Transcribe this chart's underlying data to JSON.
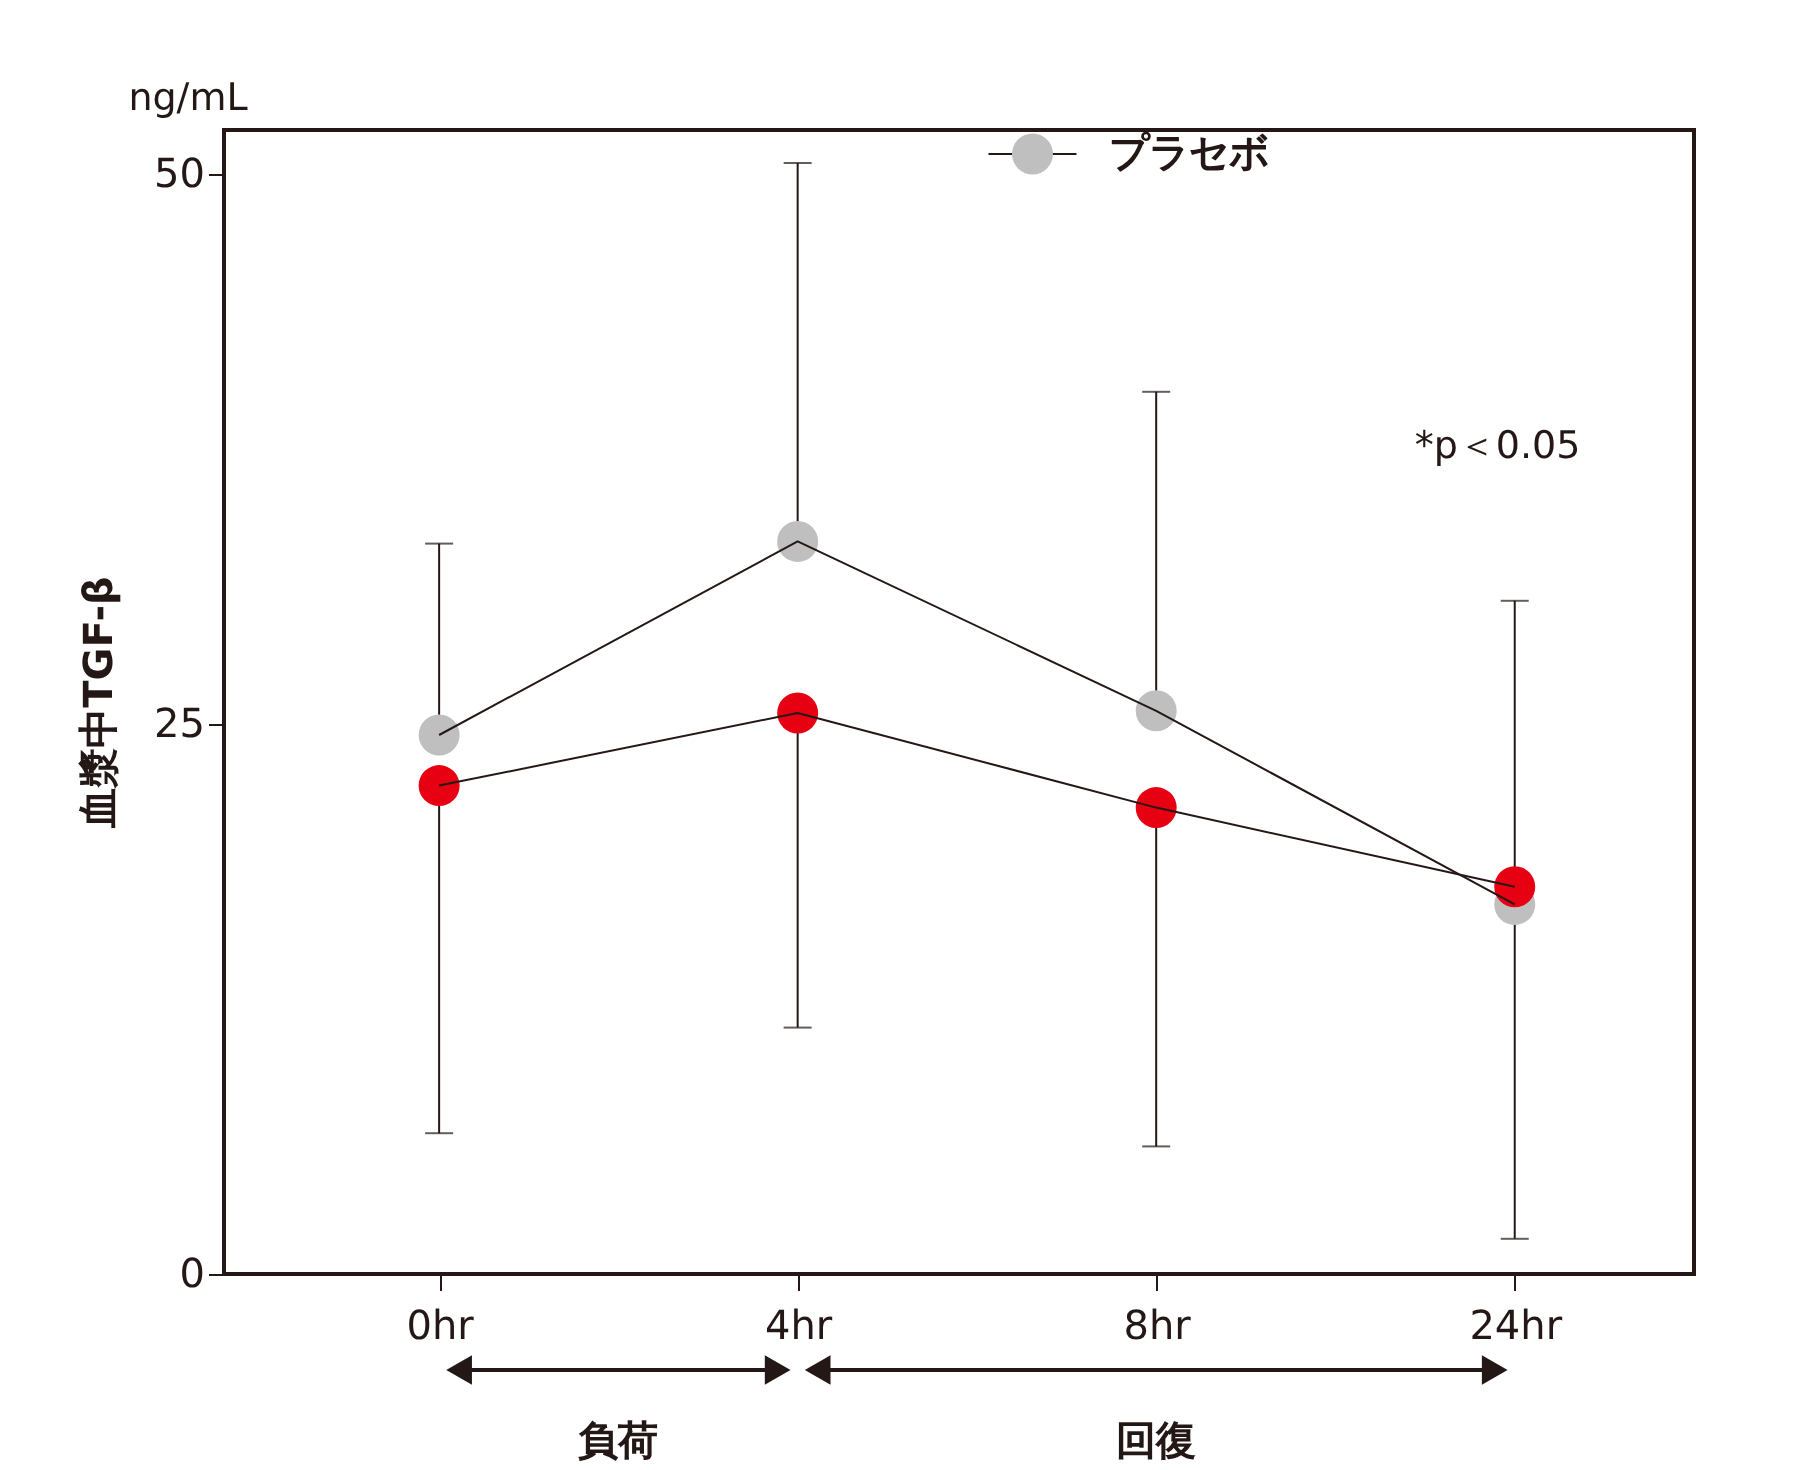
{
  "chart_data": {
    "type": "line",
    "ylabel": "血漿中TGF-β",
    "categories": [
      "0hr",
      "4hr",
      "8hr",
      "24hr"
    ],
    "series": [
      {
        "name": "プラセボ",
        "color": "#bfbfbf",
        "values": [
          24.5,
          33.3,
          25.6,
          16.8
        ],
        "errors": [
          [
            24.5,
            33.2
          ],
          [
            33.3,
            50.5
          ],
          [
            25.6,
            40.1
          ],
          [
            16.8,
            30.6
          ]
        ]
      },
      {
        "color": "#e60012",
        "values": [
          22.2,
          25.5,
          21.2,
          17.6
        ],
        "errors": [
          [
            6.4,
            22.2
          ],
          [
            11.2,
            25.5
          ],
          [
            5.8,
            21.2
          ],
          [
            1.6,
            17.6
          ]
        ]
      }
    ],
    "ylim": [
      0,
      52
    ],
    "yticks": [
      0,
      25,
      50
    ],
    "grid": false,
    "legend": "top right",
    "marker": "circle",
    "line_style": "solid",
    "annotations": [
      "ng/mL",
      "*p＜0.05",
      "負荷",
      "回復"
    ]
  }
}
